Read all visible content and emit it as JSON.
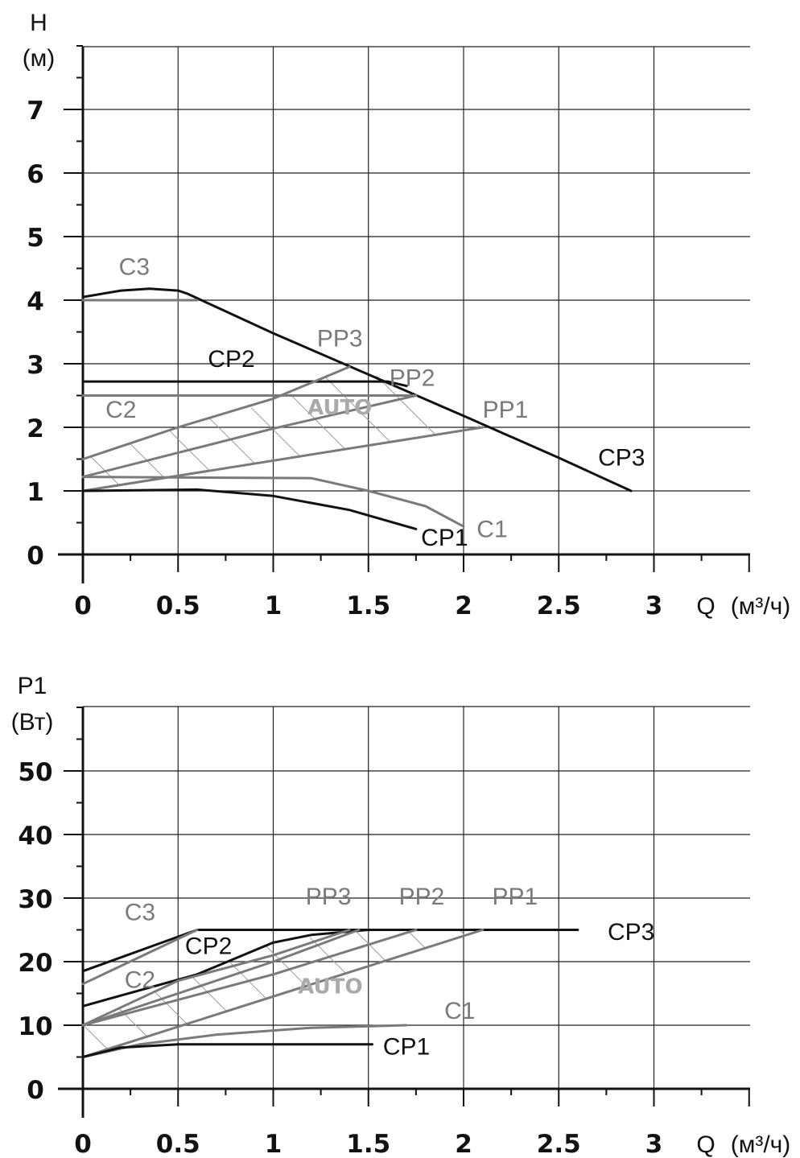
{
  "colors": {
    "black": "#111111",
    "gray": "#7a7a7a",
    "hatch": "#9a9a9a",
    "auto": "#aaaaaa"
  },
  "chart_data": [
    {
      "type": "line",
      "y_title": "H",
      "y_unit": "(м)",
      "x_label_q": "Q",
      "x_label_unit": "(м³/ч)",
      "xlim": [
        0,
        3.5
      ],
      "ylim": [
        0,
        8
      ],
      "x_ticks": [
        0,
        0.5,
        1,
        1.5,
        2,
        2.5,
        3
      ],
      "x_tick_labels": [
        "0",
        "0.5",
        "1",
        "1.5",
        "2",
        "2.5",
        "3"
      ],
      "y_ticks": [
        0,
        1,
        2,
        3,
        4,
        5,
        6,
        7
      ],
      "y_tick_labels": [
        "0",
        "1",
        "2",
        "3",
        "4",
        "5",
        "6",
        "7"
      ],
      "auto_label": "AUTO",
      "auto_region": {
        "upper": [
          [
            0,
            1.5
          ],
          [
            0.5,
            2.0
          ],
          [
            1,
            2.4
          ],
          [
            1.4,
            2.95
          ],
          [
            1.6,
            2.75
          ],
          [
            1.75,
            2.5
          ],
          [
            2.1,
            2.0
          ]
        ],
        "lower": [
          [
            0,
            1.0
          ],
          [
            2.1,
            2.0
          ]
        ]
      },
      "series": [
        {
          "name": "CP3",
          "color": "black",
          "points": [
            [
              0,
              4.05
            ],
            [
              0.2,
              4.15
            ],
            [
              0.35,
              4.18
            ],
            [
              0.5,
              4.15
            ],
            [
              0.55,
              4.1
            ],
            [
              1,
              3.48
            ],
            [
              1.5,
              2.83
            ],
            [
              2,
              2.18
            ],
            [
              2.5,
              1.52
            ],
            [
              2.88,
              1.0
            ]
          ]
        },
        {
          "name": "C3",
          "color": "gray",
          "points": [
            [
              0,
              4.0
            ],
            [
              0.6,
              4.0
            ]
          ]
        },
        {
          "name": "CP2",
          "color": "black",
          "points": [
            [
              0,
              2.72
            ],
            [
              1.6,
              2.72
            ],
            [
              1.7,
              2.65
            ]
          ]
        },
        {
          "name": "C2",
          "color": "gray",
          "points": [
            [
              0,
              2.5
            ],
            [
              1.75,
              2.5
            ]
          ]
        },
        {
          "name": "PP3",
          "color": "gray",
          "points": [
            [
              0,
              1.5
            ],
            [
              0.5,
              2.0
            ],
            [
              1,
              2.45
            ],
            [
              1.4,
              2.95
            ]
          ]
        },
        {
          "name": "PP2",
          "color": "gray",
          "points": [
            [
              0,
              1.22
            ],
            [
              0.5,
              1.6
            ],
            [
              1,
              1.98
            ],
            [
              1.75,
              2.5
            ]
          ]
        },
        {
          "name": "PP1",
          "color": "gray",
          "points": [
            [
              0,
              1.0
            ],
            [
              2.1,
              2.0
            ]
          ]
        },
        {
          "name": "C1",
          "color": "gray",
          "points": [
            [
              0,
              1.22
            ],
            [
              1.2,
              1.2
            ],
            [
              1.5,
              1.0
            ],
            [
              1.8,
              0.76
            ],
            [
              2.0,
              0.44
            ]
          ]
        },
        {
          "name": "CP1",
          "color": "black",
          "points": [
            [
              0,
              1.0
            ],
            [
              0.6,
              1.02
            ],
            [
              1.0,
              0.92
            ],
            [
              1.4,
              0.7
            ],
            [
              1.75,
              0.4
            ]
          ]
        }
      ],
      "labels": [
        {
          "name": "C3",
          "text": "C3",
          "color": "gray",
          "at": [
            0.27,
            4.4
          ]
        },
        {
          "name": "CP2",
          "text": "CP2",
          "color": "black",
          "at": [
            0.78,
            2.95
          ]
        },
        {
          "name": "PP3",
          "text": "PP3",
          "color": "gray",
          "at": [
            1.35,
            3.27
          ]
        },
        {
          "name": "PP2",
          "color": "gray",
          "text": "PP2",
          "at": [
            1.73,
            2.65
          ]
        },
        {
          "name": "C2",
          "text": "C2",
          "color": "gray",
          "at": [
            0.2,
            2.15
          ]
        },
        {
          "name": "PP1",
          "text": "PP1",
          "color": "gray",
          "at": [
            2.22,
            2.15
          ]
        },
        {
          "name": "CP3",
          "text": "CP3",
          "color": "black",
          "at": [
            2.83,
            1.4
          ]
        },
        {
          "name": "CP1",
          "text": "CP1",
          "color": "black",
          "at": [
            1.9,
            0.14
          ]
        },
        {
          "name": "C1",
          "text": "C1",
          "color": "gray",
          "at": [
            2.15,
            0.27
          ]
        }
      ]
    },
    {
      "type": "line",
      "y_title": "P1",
      "y_unit": "(Вт)",
      "x_label_q": "Q",
      "x_label_unit": "(м³/ч)",
      "xlim": [
        0,
        3.5
      ],
      "ylim": [
        0,
        60
      ],
      "x_ticks": [
        0,
        0.5,
        1,
        1.5,
        2,
        2.5,
        3
      ],
      "x_tick_labels": [
        "0",
        "0.5",
        "1",
        "1.5",
        "2",
        "2.5",
        "3"
      ],
      "y_ticks": [
        0,
        10,
        20,
        30,
        40,
        50
      ],
      "y_tick_labels": [
        "0",
        "10",
        "20",
        "30",
        "40",
        "50"
      ],
      "auto_label": "AUTO",
      "auto_region": {
        "upper": [
          [
            0,
            10
          ],
          [
            0.6,
            18
          ],
          [
            1,
            23
          ],
          [
            1.5,
            25
          ],
          [
            2.1,
            25
          ]
        ],
        "lower": [
          [
            0,
            5
          ],
          [
            2.1,
            25
          ]
        ]
      },
      "series": [
        {
          "name": "CP3",
          "color": "black",
          "points": [
            [
              0,
              18.5
            ],
            [
              0.6,
              25
            ],
            [
              2.6,
              25
            ]
          ]
        },
        {
          "name": "C3",
          "color": "gray",
          "points": [
            [
              0,
              16.5
            ],
            [
              0.6,
              25
            ]
          ]
        },
        {
          "name": "CP2",
          "color": "black",
          "points": [
            [
              0,
              13
            ],
            [
              0.6,
              18
            ],
            [
              1,
              23
            ],
            [
              1.2,
              24.2
            ],
            [
              1.5,
              25
            ]
          ]
        },
        {
          "name": "C2",
          "color": "gray",
          "points": [
            [
              0,
              10
            ],
            [
              0.5,
              17
            ],
            [
              1,
              21
            ],
            [
              1.4,
              25
            ]
          ]
        },
        {
          "name": "PP3",
          "color": "gray",
          "points": [
            [
              0,
              10
            ],
            [
              0.5,
              15
            ],
            [
              1,
              20
            ],
            [
              1.45,
              25
            ]
          ]
        },
        {
          "name": "PP2",
          "color": "gray",
          "points": [
            [
              0,
              10
            ],
            [
              0.5,
              14
            ],
            [
              1,
              18
            ],
            [
              1.75,
              25
            ]
          ]
        },
        {
          "name": "PP1",
          "color": "gray",
          "points": [
            [
              0,
              5
            ],
            [
              2.1,
              25
            ]
          ]
        },
        {
          "name": "C1",
          "color": "gray",
          "points": [
            [
              0,
              5
            ],
            [
              0.3,
              7
            ],
            [
              0.7,
              8.5
            ],
            [
              1.2,
              9.6
            ],
            [
              1.7,
              10
            ]
          ]
        },
        {
          "name": "CP1",
          "color": "black",
          "points": [
            [
              0,
              5
            ],
            [
              0.2,
              6.5
            ],
            [
              0.5,
              7
            ],
            [
              1.52,
              7
            ]
          ]
        }
      ],
      "labels": [
        {
          "name": "C3",
          "text": "C3",
          "color": "gray",
          "at": [
            0.3,
            26.5
          ]
        },
        {
          "name": "CP2",
          "text": "CP2",
          "color": "black",
          "at": [
            0.66,
            21.2
          ]
        },
        {
          "name": "C2",
          "text": "C2",
          "color": "gray",
          "at": [
            0.3,
            15.9
          ]
        },
        {
          "name": "PP3",
          "text": "PP3",
          "color": "gray",
          "at": [
            1.29,
            29
          ]
        },
        {
          "name": "PP2",
          "text": "PP2",
          "color": "gray",
          "at": [
            1.78,
            29
          ]
        },
        {
          "name": "PP1",
          "text": "PP1",
          "color": "gray",
          "at": [
            2.27,
            29
          ]
        },
        {
          "name": "CP3",
          "text": "CP3",
          "color": "black",
          "at": [
            2.88,
            23.4
          ]
        },
        {
          "name": "C1",
          "text": "C1",
          "color": "gray",
          "at": [
            1.98,
            11
          ]
        },
        {
          "name": "CP1",
          "text": "CP1",
          "color": "black",
          "at": [
            1.7,
            5.4
          ]
        }
      ]
    }
  ]
}
